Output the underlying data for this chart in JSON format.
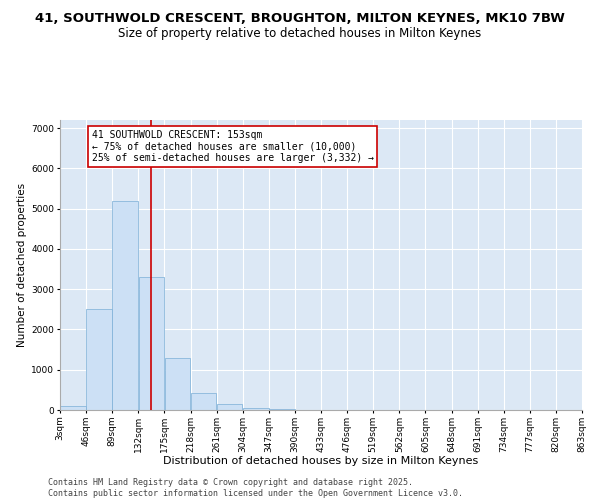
{
  "title1": "41, SOUTHWOLD CRESCENT, BROUGHTON, MILTON KEYNES, MK10 7BW",
  "title2": "Size of property relative to detached houses in Milton Keynes",
  "xlabel": "Distribution of detached houses by size in Milton Keynes",
  "ylabel": "Number of detached properties",
  "bin_edges": [
    3,
    46,
    89,
    132,
    175,
    218,
    261,
    304,
    347,
    390,
    433,
    476,
    519,
    562,
    605,
    648,
    691,
    734,
    777,
    820,
    863
  ],
  "bar_heights": [
    100,
    2500,
    5200,
    3300,
    1300,
    430,
    150,
    50,
    15,
    5,
    3,
    2,
    1,
    1,
    1,
    0,
    0,
    0,
    0,
    0
  ],
  "bar_color": "#cce0f5",
  "bar_edge_color": "#7aaed6",
  "property_size": 153,
  "vline_color": "#cc0000",
  "annotation_text": "41 SOUTHWOLD CRESCENT: 153sqm\n← 75% of detached houses are smaller (10,000)\n25% of semi-detached houses are larger (3,332) →",
  "annotation_box_color": "#ffffff",
  "annotation_box_edge_color": "#cc0000",
  "ylim": [
    0,
    7200
  ],
  "yticks": [
    0,
    1000,
    2000,
    3000,
    4000,
    5000,
    6000,
    7000
  ],
  "plot_bg_color": "#dce8f5",
  "fig_bg_color": "#ffffff",
  "grid_color": "#ffffff",
  "footer_text": "Contains HM Land Registry data © Crown copyright and database right 2025.\nContains public sector information licensed under the Open Government Licence v3.0.",
  "title1_fontsize": 9.5,
  "title2_fontsize": 8.5,
  "xlabel_fontsize": 8,
  "ylabel_fontsize": 7.5,
  "tick_fontsize": 6.5,
  "annotation_fontsize": 7,
  "footer_fontsize": 6
}
